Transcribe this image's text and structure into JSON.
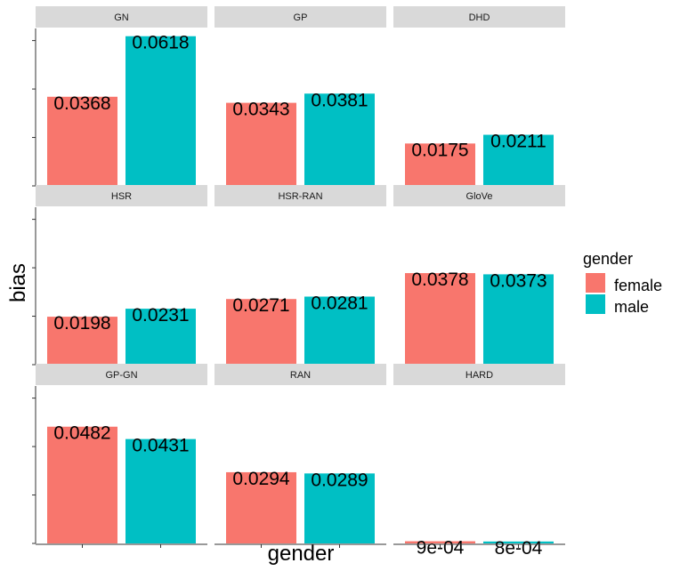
{
  "chart_data": {
    "type": "bar",
    "layout": "facet-grid-3x3",
    "xlabel": "gender",
    "ylabel": "bias",
    "ylim": [
      0,
      0.065
    ],
    "categories": [
      "female",
      "male"
    ],
    "legend": {
      "title": "gender",
      "position": "right",
      "items": [
        {
          "label": "female",
          "color": "#F8766D"
        },
        {
          "label": "male",
          "color": "#00BFC4"
        }
      ]
    },
    "facets": [
      {
        "name": "GN",
        "values": [
          0.0368,
          0.0618
        ],
        "labels": [
          "0.0368",
          "0.0618"
        ]
      },
      {
        "name": "GP",
        "values": [
          0.0343,
          0.0381
        ],
        "labels": [
          "0.0343",
          "0.0381"
        ]
      },
      {
        "name": "DHD",
        "values": [
          0.0175,
          0.0211
        ],
        "labels": [
          "0.0175",
          "0.0211"
        ]
      },
      {
        "name": "HSR",
        "values": [
          0.0198,
          0.0231
        ],
        "labels": [
          "0.0198",
          "0.0231"
        ]
      },
      {
        "name": "HSR-RAN",
        "values": [
          0.0271,
          0.0281
        ],
        "labels": [
          "0.0271",
          "0.0281"
        ]
      },
      {
        "name": "GloVe",
        "values": [
          0.0378,
          0.0373
        ],
        "labels": [
          "0.0378",
          "0.0373"
        ]
      },
      {
        "name": "GP-GN",
        "values": [
          0.0482,
          0.0431
        ],
        "labels": [
          "0.0482",
          "0.0431"
        ]
      },
      {
        "name": "RAN",
        "values": [
          0.0294,
          0.0289
        ],
        "labels": [
          "0.0294",
          "0.0289"
        ]
      },
      {
        "name": "HARD",
        "values": [
          0.0009,
          0.0008
        ],
        "labels": [
          "9e-04",
          "8e-04"
        ]
      }
    ],
    "grid": false
  }
}
